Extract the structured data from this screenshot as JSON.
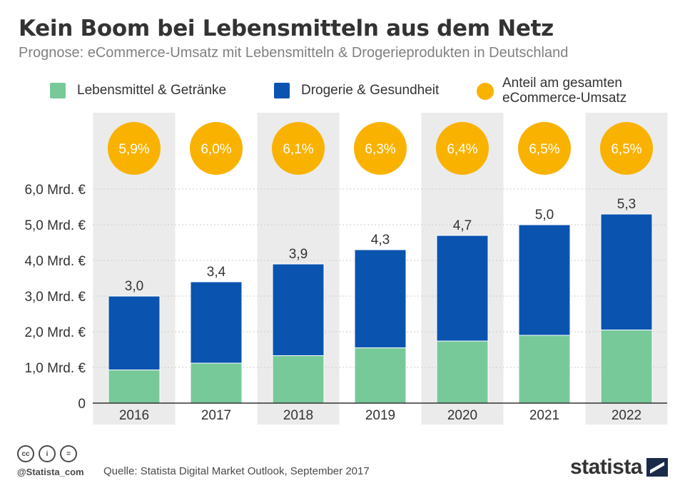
{
  "title": "Kein Boom bei Lebensmitteln aus dem Netz",
  "subtitle": "Prognose: eCommerce-Umsatz mit Lebensmitteln & Drogerieprodukten in Deutschland",
  "legend": {
    "food": "Lebensmittel  & Getränke",
    "drug": "Drogerie & Gesundheit",
    "share_line1": "Anteil am gesamten",
    "share_line2": "eCommerce-Umsatz"
  },
  "colors": {
    "food": "#78c99a",
    "drug": "#0a54b0",
    "share": "#f9b200",
    "band": "#ebebeb",
    "grid": "#cccccc",
    "text": "#333333"
  },
  "chart_data": {
    "type": "bar",
    "stacked": true,
    "categories": [
      "2016",
      "2017",
      "2018",
      "2019",
      "2020",
      "2021",
      "2022"
    ],
    "series": [
      {
        "name": "Lebensmittel  & Getränke",
        "values": [
          0.93,
          1.12,
          1.33,
          1.55,
          1.74,
          1.9,
          2.05
        ]
      },
      {
        "name": "Drogerie & Gesundheit",
        "values": [
          2.07,
          2.28,
          2.57,
          2.75,
          2.96,
          3.1,
          3.25
        ]
      }
    ],
    "totals": [
      3.0,
      3.4,
      3.9,
      4.3,
      4.7,
      5.0,
      5.3
    ],
    "total_labels": [
      "3,0",
      "3,4",
      "3,9",
      "4,3",
      "4,7",
      "5,0",
      "5,3"
    ],
    "share_labels": [
      "5,9%",
      "6,0%",
      "6,1%",
      "6,3%",
      "6,4%",
      "6,5%",
      "6,5%"
    ],
    "ytick_values": [
      0,
      1,
      2,
      3,
      4,
      5,
      6
    ],
    "ytick_labels": [
      "0",
      "1,0 Mrd. €",
      "2,0 Mrd. €",
      "3,0 Mrd. €",
      "4,0 Mrd. €",
      "5,0 Mrd. €",
      "6,0 Mrd. €"
    ],
    "ylim": [
      0,
      6
    ],
    "grid": true,
    "legend_position": "top"
  },
  "footer": {
    "cc_label": "cc",
    "by_label": "i",
    "nd_label": "=",
    "handle": "@Statista_com",
    "source": "Quelle: Statista Digital Market Outlook, September 2017",
    "brand": "statista"
  }
}
